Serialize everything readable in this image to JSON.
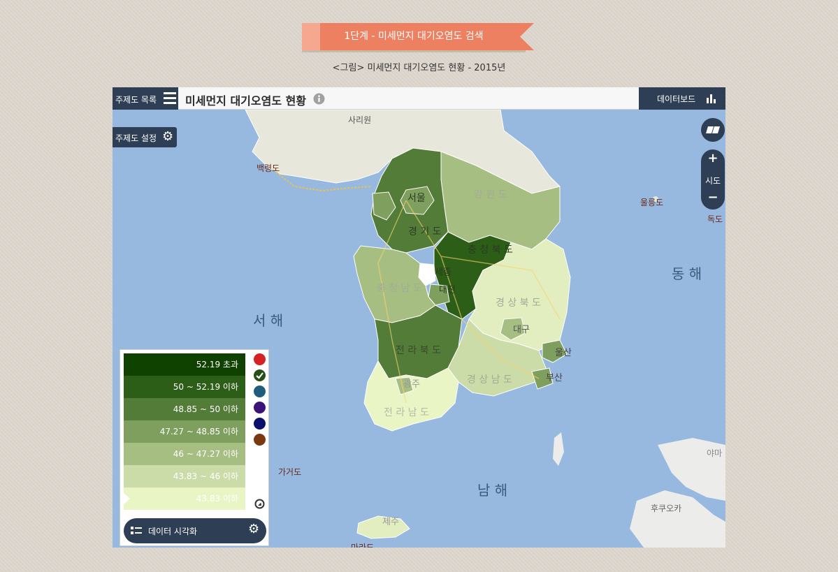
{
  "header": {
    "step_title": "1단계 - 미세먼지 대기오염도 검색",
    "caption": "<그림> 미세먼지 대기오염도 현황 - 2015년"
  },
  "toolbar": {
    "theme_list_label": "주제도 목록",
    "map_title": "미세먼지 대기오염도 현황",
    "dashboard_label": "데이터보드",
    "theme_settings_label": "주제도 설정",
    "zoom_level_label": "시도",
    "zoom_in": "+",
    "zoom_out": "−"
  },
  "legend": {
    "classes": [
      {
        "label": "52.19 초과",
        "color": "#0f4200"
      },
      {
        "label": "50 ~ 52.19 이하",
        "color": "#2d5e18"
      },
      {
        "label": "48.85 ~ 50 이하",
        "color": "#527c38"
      },
      {
        "label": "47.27 ~ 48.85 이하",
        "color": "#7e9f5d"
      },
      {
        "label": "46 ~ 47.27 이하",
        "color": "#a7be82"
      },
      {
        "label": "43.83 ~ 46 이하",
        "color": "#cbdca8"
      },
      {
        "label": "43.83 이하",
        "color": "#eaf5c6"
      }
    ],
    "palette": [
      "#d52222",
      "#264f15",
      "#1f5d7c",
      "#3b1478",
      "#0b0f6e",
      "#7a3811"
    ],
    "visualize_label": "데이터 시각화"
  },
  "map_labels": {
    "sariwon": "사리원",
    "baengnyeong": "백령도",
    "seoul": "서울",
    "gangwon": "강 원 도",
    "gyeonggi": "경 기 도",
    "chungbuk": "충 청 북 도",
    "sejong": "세종",
    "daejeon": "대전",
    "chungnam": "충 청 남 도",
    "gyeongbuk": "경 상 북 도",
    "daegu": "대구",
    "ulsan": "울산",
    "busan": "부산",
    "gyeongnam": "경 상 남 도",
    "jeonbuk": "전 라 북 도",
    "gwangju": "광주",
    "jeonnam": "전 라 남 도",
    "jeju": "제주",
    "marado": "마라도",
    "gageodo": "가거도",
    "ulleung": "울릉도",
    "dokdo": "독도",
    "east_sea": "동 해",
    "west_sea": "서 해",
    "south_sea": "남 해",
    "yama": "야마",
    "hukuoka": "후쿠오카"
  }
}
